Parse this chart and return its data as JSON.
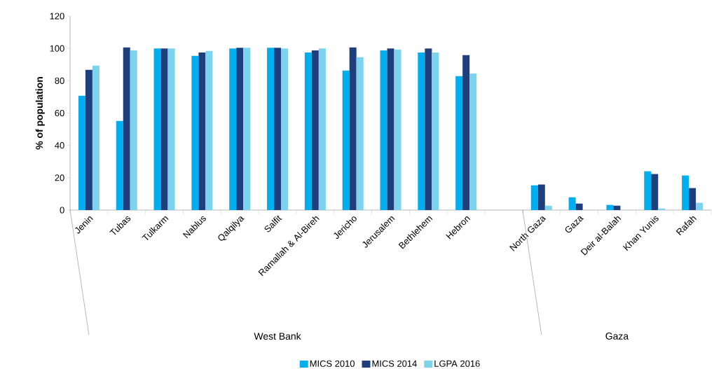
{
  "chart_data": {
    "type": "bar",
    "ylabel": "% of population",
    "categories": [
      "Jenin",
      "Tubas",
      "Tulkarm",
      "Nablus",
      "Qalqilya",
      "Salfit",
      "Ramallah & Al-Bireh",
      "Jericho",
      "Jerusalem",
      "Bethlehem",
      "Hebron",
      null,
      "North Gaza",
      "Gaza",
      "Deir al-Balah",
      "Khan Yunis",
      "Rafah"
    ],
    "series": [
      {
        "name": "MICS 2010",
        "color": "#00aeef",
        "values": [
          70.7,
          55.1,
          100,
          95.4,
          100,
          100.4,
          97.5,
          86.3,
          98.8,
          97.5,
          82.8,
          null,
          15.3,
          7.9,
          3.2,
          24.0,
          21.4
        ]
      },
      {
        "name": "MICS 2014",
        "color": "#1f3f7c",
        "values": [
          86.7,
          100.6,
          100,
          97.5,
          100.4,
          100.4,
          98.8,
          100.6,
          100,
          100,
          95.8,
          null,
          15.8,
          4.0,
          2.7,
          22.3,
          13.6
        ]
      },
      {
        "name": "LGPA 2016",
        "color": "#7dd3ee",
        "values": [
          89.3,
          98.8,
          100,
          98.4,
          100.4,
          100,
          100,
          94.5,
          99.3,
          97.5,
          84.5,
          null,
          2.7,
          null,
          null,
          1.0,
          4.5
        ]
      }
    ],
    "ylim": [
      0,
      120
    ],
    "yticks": [
      0,
      20,
      40,
      60,
      80,
      100,
      120
    ],
    "annotations": [
      "West Bank",
      "Gaza"
    ],
    "legend": "bottom",
    "grid": false
  }
}
